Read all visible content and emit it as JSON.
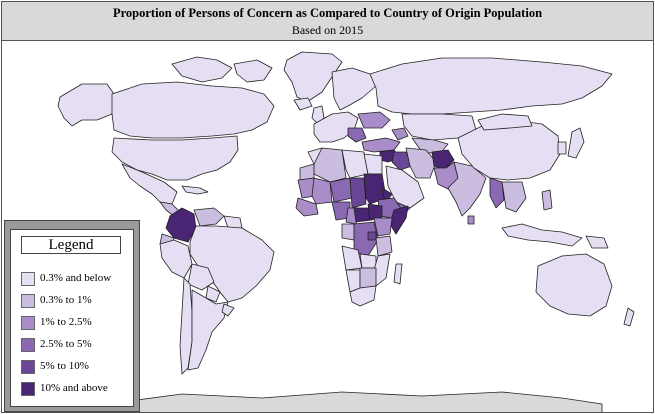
{
  "header": {
    "title": "Proportion of Persons of Concern as Compared to Country of Origin Population",
    "subtitle": "Based on 2015"
  },
  "legend": {
    "title": "Legend",
    "items": [
      {
        "label": "0.3% and below",
        "color": "#e6def2"
      },
      {
        "label": "0.3% to 1%",
        "color": "#cabde0"
      },
      {
        "label": "1% to 2.5%",
        "color": "#a98dc9"
      },
      {
        "label": "2.5% to 5%",
        "color": "#8a68b2"
      },
      {
        "label": "5% to 10%",
        "color": "#6a4696"
      },
      {
        "label": "10% and above",
        "color": "#4a2573"
      }
    ]
  },
  "colors": {
    "ocean": "#ffffff",
    "no_data": "#d9d9d9",
    "border": "#222222"
  }
}
